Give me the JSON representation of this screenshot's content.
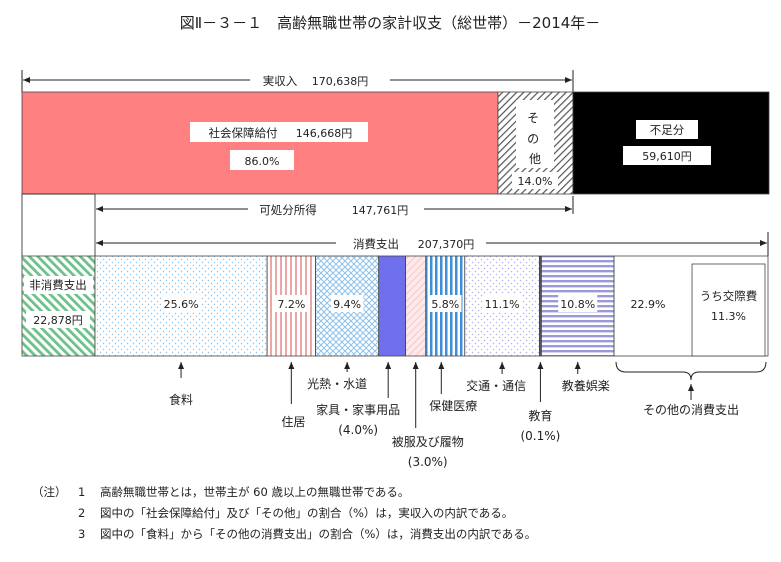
{
  "title": "図Ⅱ－３－１　高齢無職世帯の家計収支（総世帯）－2014年－",
  "chart_data": {
    "type": "bar",
    "income": {
      "label": "実収入",
      "total": "170,638円",
      "segments": [
        {
          "key": "social",
          "label": "社会保障給付",
          "amount": "146,668円",
          "pct_label": "86.0%",
          "value": 146668,
          "color": "#ff8080"
        },
        {
          "key": "other",
          "label": "その他",
          "pct_label": "14.0%",
          "value": 23970,
          "color": "#808080"
        },
        {
          "key": "deficit",
          "label": "不足分",
          "amount": "59,610円",
          "value": 59610,
          "color": "#000000"
        }
      ]
    },
    "disposable": {
      "label": "可処分所得",
      "amount": "147,761円",
      "value": 147761
    },
    "expenditure": {
      "label": "消費支出",
      "total": "207,370円",
      "value": 207370,
      "non_consumption": {
        "label": "非消費支出",
        "amount": "22,878円",
        "value": 22878,
        "color": "#6cc18a"
      },
      "categories": [
        {
          "key": "food",
          "label": "食料",
          "pct": 25.6,
          "pct_label": "25.6%",
          "color": "#7fb6e6"
        },
        {
          "key": "housing",
          "label": "住居",
          "pct": 7.2,
          "pct_label": "7.2%",
          "color": "#e27a7a"
        },
        {
          "key": "utilities",
          "label": "光熱・水道",
          "pct": 9.4,
          "pct_label": "9.4%",
          "color": "#7fb6e6"
        },
        {
          "key": "furniture",
          "label": "家具・家事用品",
          "pct": 4.0,
          "pct_label": "(4.0%)",
          "color": "#7070ee"
        },
        {
          "key": "clothing",
          "label": "被服及び履物",
          "pct": 3.0,
          "pct_label": "(3.0%)",
          "color": "#f7c0c0"
        },
        {
          "key": "medical",
          "label": "保健医療",
          "pct": 5.8,
          "pct_label": "5.8%",
          "color": "#3f8fd6"
        },
        {
          "key": "transport",
          "label": "交通・通信",
          "pct": 11.1,
          "pct_label": "11.1%",
          "color": "#a9a9e8"
        },
        {
          "key": "education",
          "label": "教育",
          "pct": 0.1,
          "pct_label": "(0.1%)",
          "color": "#555555"
        },
        {
          "key": "recreation",
          "label": "教養娯楽",
          "pct": 10.8,
          "pct_label": "10.8%",
          "color": "#8e8ed6"
        },
        {
          "key": "other",
          "label": "その他の消費支出",
          "pct": 22.9,
          "pct_label": "22.9%",
          "color": "#ffffff",
          "sub": {
            "label": "うち交際費",
            "pct_label": "11.3%",
            "pct": 11.3
          }
        }
      ]
    }
  },
  "notes": {
    "lead": "（注）",
    "items": [
      {
        "num": "1",
        "text": "高齢無職世帯とは，世帯主が 60 歳以上の無職世帯である。"
      },
      {
        "num": "2",
        "text": "図中の「社会保障給付」及び「その他」の割合（%）は，実収入の内訳である。"
      },
      {
        "num": "3",
        "text": "図中の「食料」から「その他の消費支出」の割合（%）は，消費支出の内訳である。"
      }
    ]
  }
}
